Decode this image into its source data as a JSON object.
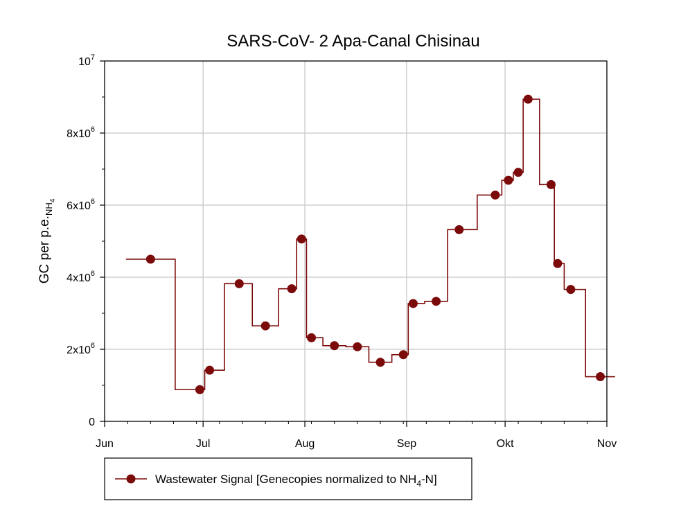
{
  "chart_data": {
    "type": "line",
    "title": "SARS-CoV- 2 Apa-Canal Chisinau",
    "ylabel_main": "GC per p.e.",
    "ylabel_sub": "NH",
    "ylabel_sub2": "4",
    "xlim": [
      "2021-06-01",
      "2021-11-01"
    ],
    "ylim": [
      0,
      10000000
    ],
    "x_ticks": [
      {
        "date": "2021-06-01",
        "label": "Jun"
      },
      {
        "date": "2021-07-01",
        "label": "Jul"
      },
      {
        "date": "2021-08-01",
        "label": "Aug"
      },
      {
        "date": "2021-09-01",
        "label": "Sep"
      },
      {
        "date": "2021-10-01",
        "label": "Okt"
      },
      {
        "date": "2021-11-01",
        "label": "Nov"
      }
    ],
    "y_ticks": [
      {
        "value": 0,
        "base": "0",
        "exp": ""
      },
      {
        "value": 2000000,
        "base": "2x10",
        "exp": "6"
      },
      {
        "value": 4000000,
        "base": "4x10",
        "exp": "6"
      },
      {
        "value": 6000000,
        "base": "6x10",
        "exp": "6"
      },
      {
        "value": 8000000,
        "base": "8x10",
        "exp": "6"
      },
      {
        "value": 10000000,
        "base": "10",
        "exp": "7"
      }
    ],
    "grid": true,
    "legend_position": "bottom-left",
    "color": "#7B0A0A",
    "series": [
      {
        "name": "Wastewater Signal [Genecopies normalized to NH4-N]",
        "legend_main": "Wastewater Signal [Genecopies normalized to NH",
        "legend_sub": "4",
        "legend_end": "-N]",
        "step": true,
        "points": [
          {
            "x": "2021-06-15",
            "y": 4500000
          },
          {
            "x": "2021-06-30",
            "y": 880000
          },
          {
            "x": "2021-07-03",
            "y": 1420000
          },
          {
            "x": "2021-07-12",
            "y": 3820000
          },
          {
            "x": "2021-07-20",
            "y": 2650000
          },
          {
            "x": "2021-07-28",
            "y": 3680000
          },
          {
            "x": "2021-07-31",
            "y": 5060000
          },
          {
            "x": "2021-08-03",
            "y": 2320000
          },
          {
            "x": "2021-08-10",
            "y": 2100000
          },
          {
            "x": "2021-08-17",
            "y": 2070000
          },
          {
            "x": "2021-08-24",
            "y": 1640000
          },
          {
            "x": "2021-08-31",
            "y": 1850000
          },
          {
            "x": "2021-09-03",
            "y": 3270000
          },
          {
            "x": "2021-09-10",
            "y": 3330000
          },
          {
            "x": "2021-09-17",
            "y": 5320000
          },
          {
            "x": "2021-09-28",
            "y": 6280000
          },
          {
            "x": "2021-10-02",
            "y": 6690000
          },
          {
            "x": "2021-10-05",
            "y": 6910000
          },
          {
            "x": "2021-10-08",
            "y": 8940000
          },
          {
            "x": "2021-10-15",
            "y": 6570000
          },
          {
            "x": "2021-10-17",
            "y": 4380000
          },
          {
            "x": "2021-10-21",
            "y": 3660000
          },
          {
            "x": "2021-10-30",
            "y": 1240000
          }
        ]
      }
    ]
  }
}
